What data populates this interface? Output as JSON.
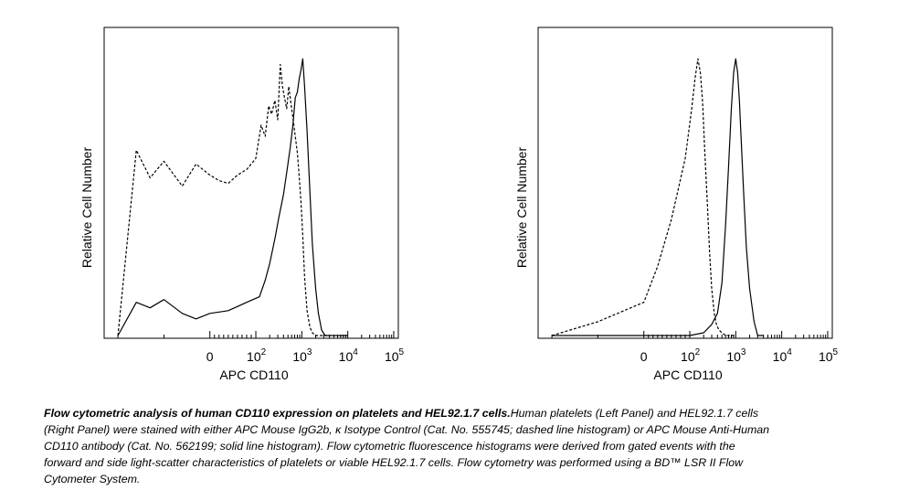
{
  "chart_data": [
    {
      "type": "area",
      "panel": "left",
      "ylabel": "Relative Cell Number",
      "xlabel": "APC CD110",
      "xticks": [
        {
          "value": 0,
          "base": "0",
          "exp": ""
        },
        {
          "value": 100,
          "base": "10",
          "exp": "2"
        },
        {
          "value": 1000,
          "base": "10",
          "exp": "3"
        },
        {
          "value": 10000,
          "base": "10",
          "exp": "4"
        },
        {
          "value": 100000,
          "base": "10",
          "exp": "5"
        }
      ],
      "xscale": "biexponential",
      "series": [
        {
          "style": "dashed",
          "x": [
            -200,
            -160,
            -130,
            -100,
            -60,
            -30,
            0,
            20,
            40,
            60,
            80,
            100,
            130,
            160,
            190,
            220,
            260,
            300,
            340,
            380,
            420,
            470,
            520,
            580,
            650,
            720,
            800,
            880,
            960,
            1050,
            1150,
            1300,
            1500,
            1700,
            2000,
            2500,
            3000,
            4000
          ],
          "y": [
            0.0,
            0.67,
            0.57,
            0.63,
            0.54,
            0.62,
            0.58,
            0.56,
            0.55,
            0.58,
            0.6,
            0.64,
            0.76,
            0.72,
            0.83,
            0.8,
            0.85,
            0.78,
            0.98,
            0.9,
            0.86,
            0.82,
            0.9,
            0.84,
            0.78,
            0.72,
            0.66,
            0.57,
            0.48,
            0.36,
            0.21,
            0.09,
            0.03,
            0.01,
            0.0,
            0.0,
            0.0,
            0.0
          ]
        },
        {
          "style": "solid",
          "x": [
            -200,
            -160,
            -130,
            -100,
            -60,
            -30,
            0,
            40,
            80,
            120,
            160,
            200,
            260,
            320,
            400,
            480,
            560,
            640,
            720,
            800,
            880,
            960,
            1050,
            1150,
            1300,
            1500,
            1700,
            2000,
            2300,
            2700,
            3200,
            4000,
            5000,
            6500,
            8000,
            10000
          ],
          "y": [
            0.0,
            0.12,
            0.1,
            0.13,
            0.08,
            0.06,
            0.08,
            0.09,
            0.12,
            0.14,
            0.2,
            0.26,
            0.35,
            0.43,
            0.51,
            0.6,
            0.68,
            0.76,
            0.86,
            0.88,
            0.93,
            0.96,
            1.0,
            0.9,
            0.74,
            0.52,
            0.33,
            0.17,
            0.08,
            0.02,
            0.0,
            0.0,
            0.0,
            0.0,
            0.0,
            0.0
          ]
        }
      ]
    },
    {
      "type": "area",
      "panel": "right",
      "ylabel": "Relative Cell Number",
      "xlabel": "APC CD110",
      "xticks": [
        {
          "value": 0,
          "base": "0",
          "exp": ""
        },
        {
          "value": 100,
          "base": "10",
          "exp": "2"
        },
        {
          "value": 1000,
          "base": "10",
          "exp": "3"
        },
        {
          "value": 10000,
          "base": "10",
          "exp": "4"
        },
        {
          "value": 100000,
          "base": "10",
          "exp": "5"
        }
      ],
      "xscale": "biexponential",
      "series": [
        {
          "style": "dashed",
          "x": [
            -200,
            -100,
            0,
            30,
            60,
            90,
            110,
            130,
            150,
            170,
            190,
            210,
            240,
            270,
            300,
            340,
            380,
            430,
            500,
            600,
            750,
            1000
          ],
          "y": [
            0.0,
            0.05,
            0.12,
            0.25,
            0.42,
            0.64,
            0.82,
            0.93,
            1.0,
            0.95,
            0.84,
            0.68,
            0.48,
            0.3,
            0.17,
            0.08,
            0.04,
            0.02,
            0.01,
            0.0,
            0.0,
            0.0
          ]
        },
        {
          "style": "solid",
          "x": [
            -200,
            0,
            100,
            200,
            300,
            400,
            500,
            600,
            700,
            800,
            900,
            1000,
            1100,
            1200,
            1300,
            1500,
            1700,
            2000,
            2500,
            3000,
            4000
          ],
          "y": [
            0.0,
            0.0,
            0.0,
            0.01,
            0.04,
            0.08,
            0.19,
            0.4,
            0.62,
            0.82,
            0.95,
            1.0,
            0.95,
            0.85,
            0.72,
            0.5,
            0.32,
            0.17,
            0.05,
            0.0,
            0.0
          ]
        }
      ]
    }
  ],
  "caption": {
    "title": "Flow cytometric analysis of human CD110 expression on platelets and HEL92.1.7 cells.",
    "body": "Human platelets (Left Panel) and HEL92.1.7 cells (Right Panel) were stained with either APC Mouse IgG2b, κ Isotype Control (Cat. No. 555745; dashed line histogram) or APC Mouse Anti-Human CD110 antibody (Cat. No. 562199; solid line histogram). Flow cytometric fluorescence histograms were derived from gated events with the forward and side light-scatter characteristics of platelets or viable HEL92.1.7 cells. Flow cytometry was performed using a BD™ LSR II Flow Cytometer System."
  }
}
